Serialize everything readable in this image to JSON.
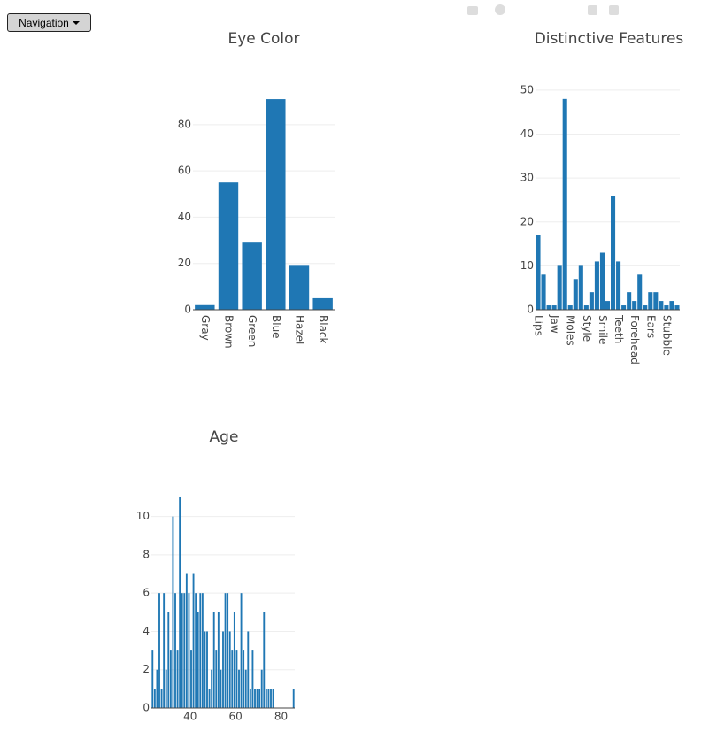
{
  "navigation": {
    "label": "Navigation"
  },
  "chart_data": [
    {
      "type": "bar",
      "title": "Eye Color",
      "categories": [
        "Gray",
        "Brown",
        "Green",
        "Blue",
        "Hazel",
        "Black"
      ],
      "values": [
        2,
        55,
        29,
        91,
        19,
        5
      ],
      "color": "#1f77b4",
      "ylim": [
        0,
        96
      ],
      "yticks": [
        0,
        20,
        40,
        60,
        80
      ],
      "grid": true
    },
    {
      "type": "bar",
      "title": "Distinctive Features",
      "categories": [
        "Lips",
        null,
        null,
        "Jaw",
        null,
        null,
        "Moles",
        null,
        null,
        "Style",
        null,
        null,
        "Smile",
        null,
        null,
        "Teeth",
        null,
        null,
        "Forehead",
        null,
        null,
        "Ears",
        null,
        null,
        "Stubble",
        null,
        null
      ],
      "values": [
        17,
        8,
        1,
        1,
        10,
        48,
        1,
        7,
        10,
        1,
        4,
        11,
        13,
        2,
        26,
        11,
        1,
        4,
        2,
        8,
        1,
        4,
        4,
        2,
        1,
        2,
        1
      ],
      "color": "#1f77b4",
      "ylim": [
        0,
        52
      ],
      "yticks": [
        0,
        10,
        20,
        30,
        40,
        50
      ],
      "grid": true
    },
    {
      "type": "histogram",
      "title": "Age",
      "bins": [
        23,
        24,
        25,
        26,
        27,
        28,
        29,
        30,
        31,
        32,
        33,
        34,
        35,
        36,
        37,
        38,
        39,
        40,
        41,
        42,
        43,
        44,
        45,
        46,
        47,
        48,
        49,
        50,
        51,
        52,
        53,
        54,
        55,
        56,
        57,
        58,
        59,
        60,
        61,
        62,
        63,
        64,
        65,
        66,
        67,
        68,
        69,
        70,
        71,
        72,
        73,
        74,
        75,
        76,
        77,
        78,
        79,
        80,
        81,
        82,
        83,
        84,
        85,
        86
      ],
      "values": [
        3,
        1,
        2,
        6,
        1,
        6,
        2,
        5,
        3,
        10,
        6,
        3,
        11,
        6,
        6,
        7,
        6,
        3,
        7,
        6,
        5,
        6,
        6,
        4,
        4,
        1,
        2,
        5,
        3,
        5,
        2,
        4,
        6,
        6,
        4,
        3,
        5,
        3,
        2,
        6,
        3,
        2,
        4,
        1,
        3,
        1,
        1,
        1,
        2,
        5,
        1,
        1,
        1,
        1,
        0,
        0,
        0,
        0,
        0,
        0,
        0,
        0,
        1
      ],
      "color": "#1f77b4",
      "xlim": [
        23,
        86
      ],
      "xticks": [
        40,
        60,
        80
      ],
      "ylim": [
        0,
        11.6
      ],
      "yticks": [
        0,
        2,
        4,
        6,
        8,
        10
      ],
      "grid": true
    }
  ]
}
